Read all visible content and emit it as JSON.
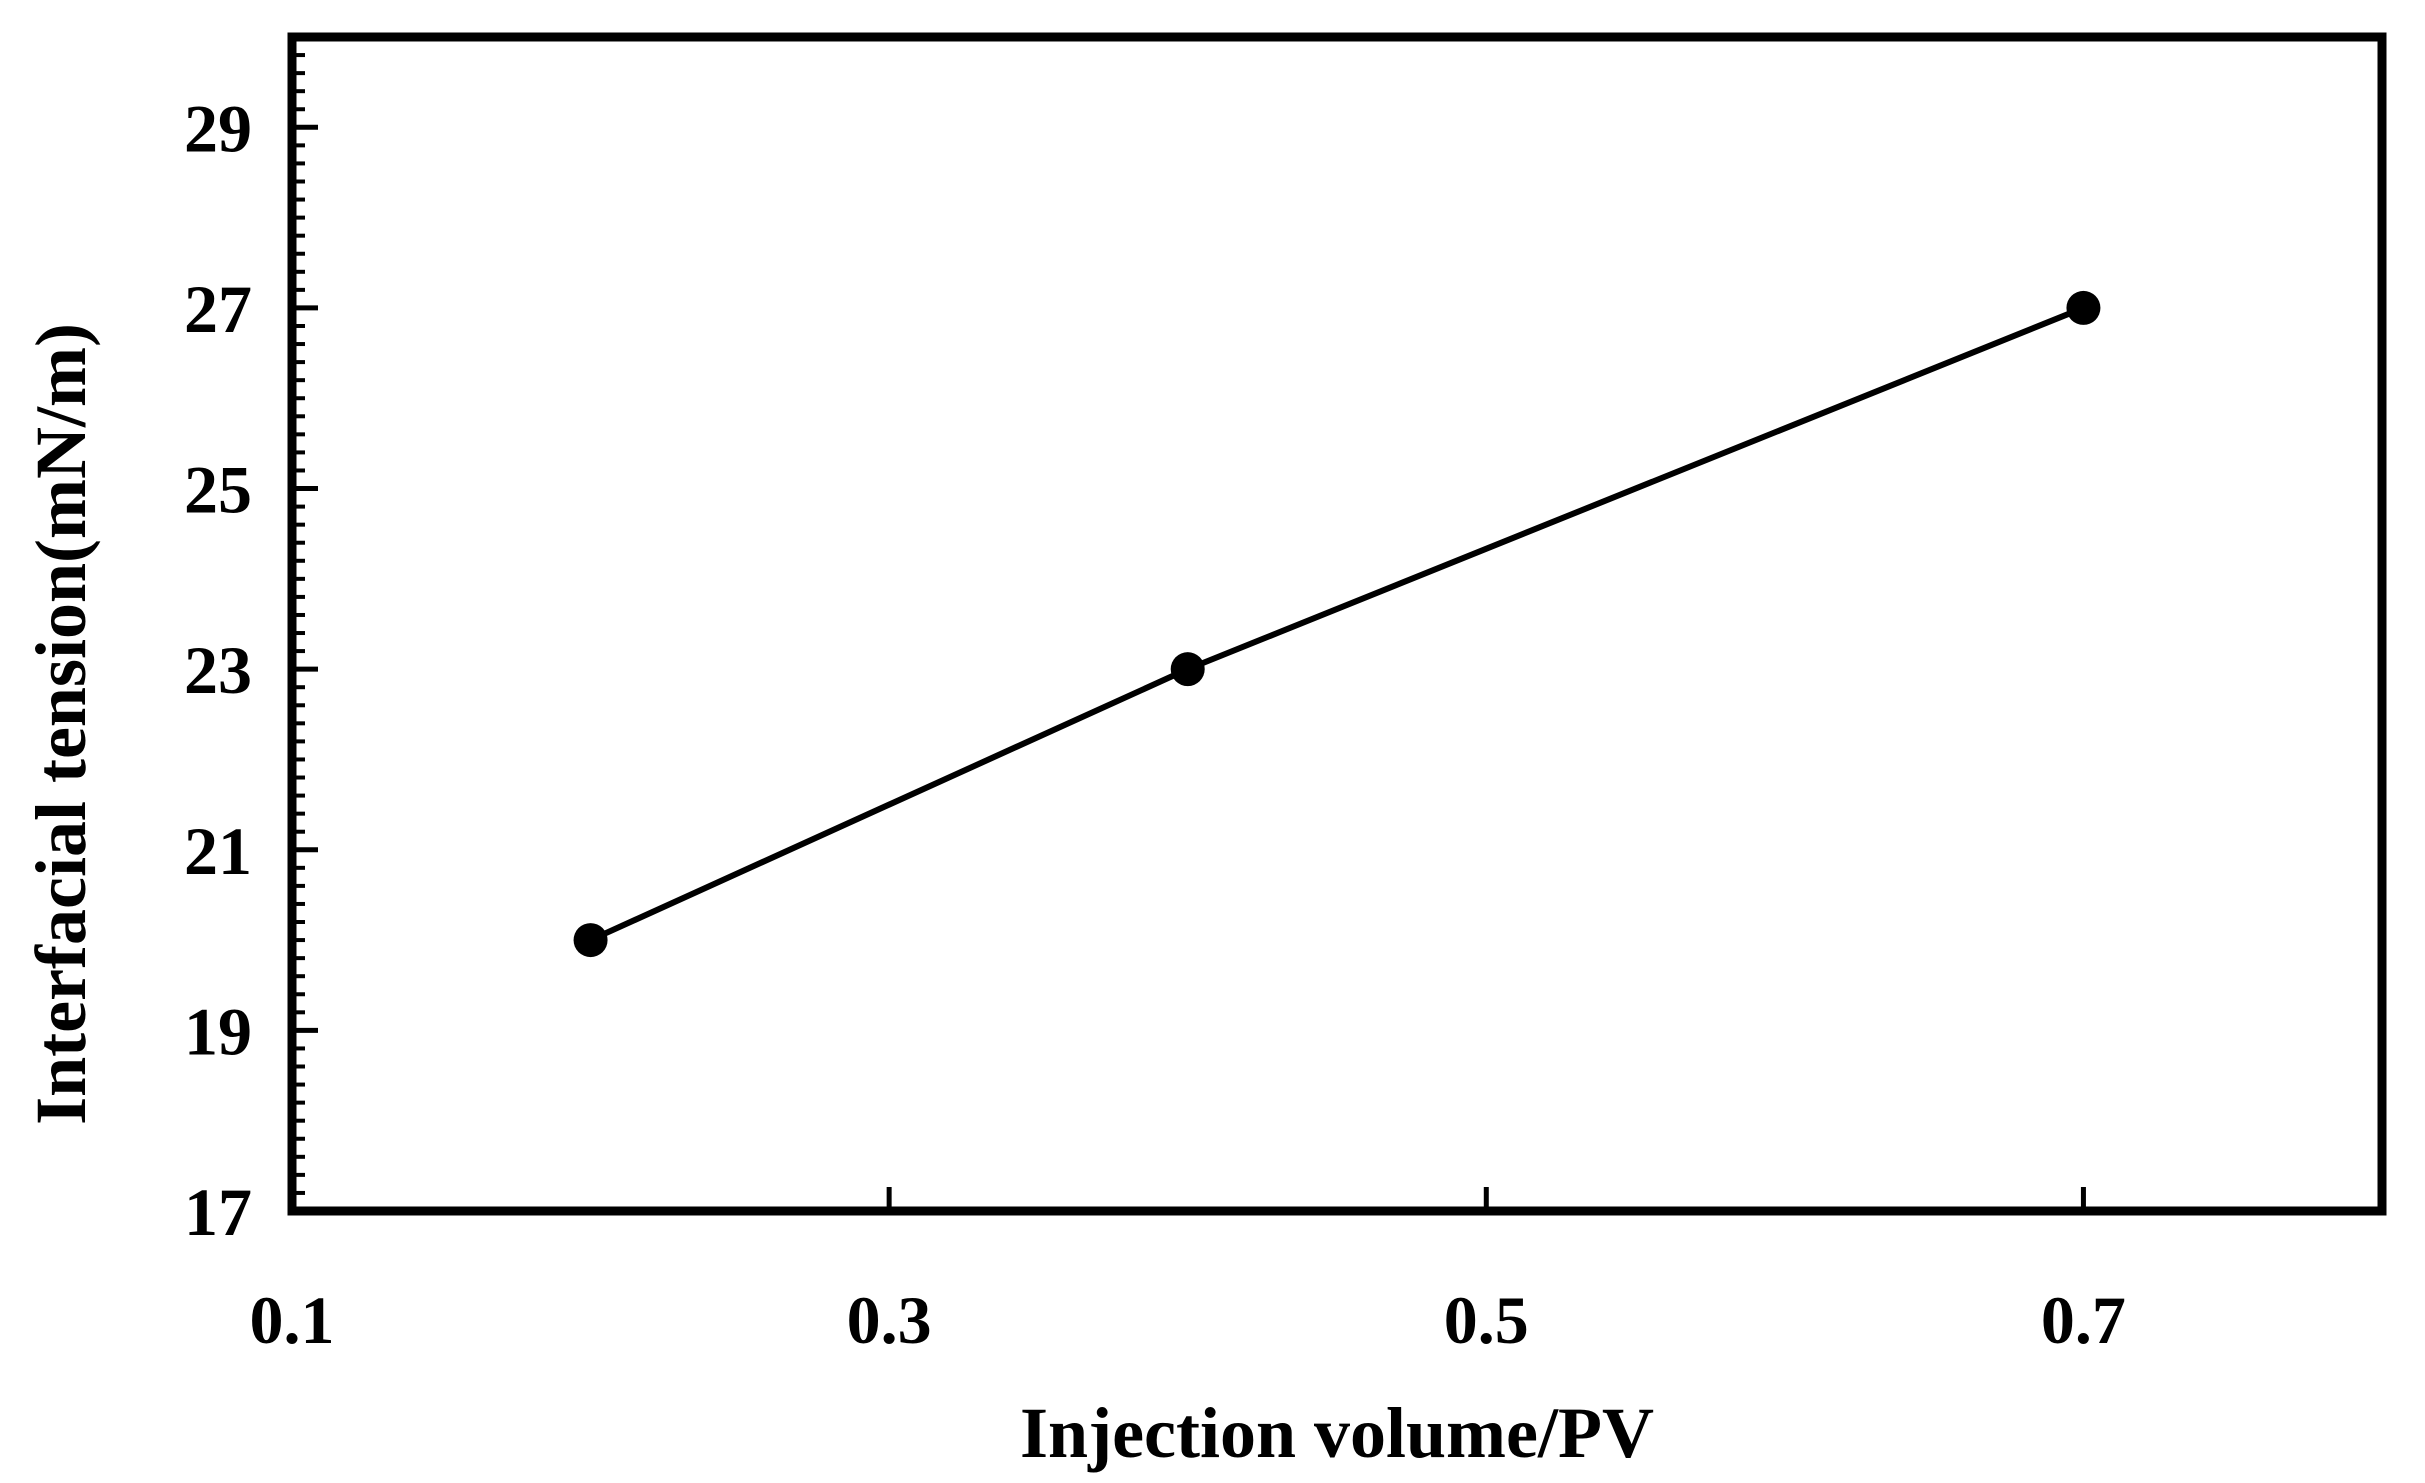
{
  "chart_data": {
    "type": "line",
    "title": "",
    "xlabel": "Injection volume/PV",
    "ylabel": "Interfacial tension(mN/m)",
    "xlim": [
      0.1,
      0.8
    ],
    "ylim": [
      17,
      30
    ],
    "xticks": [
      0.1,
      0.3,
      0.5,
      0.7
    ],
    "xtick_labels": [
      "0.1",
      "0.3",
      "0.5",
      "0.7"
    ],
    "yticks": [
      17,
      19,
      21,
      23,
      25,
      27,
      29
    ],
    "ytick_labels": [
      "17",
      "19",
      "21",
      "23",
      "25",
      "27",
      "29"
    ],
    "grid": false,
    "series": [
      {
        "name": "Interfacial tension",
        "color": "#000000",
        "marker": "circle",
        "x": [
          0.2,
          0.4,
          0.7
        ],
        "y": [
          20,
          23,
          27
        ]
      }
    ]
  }
}
